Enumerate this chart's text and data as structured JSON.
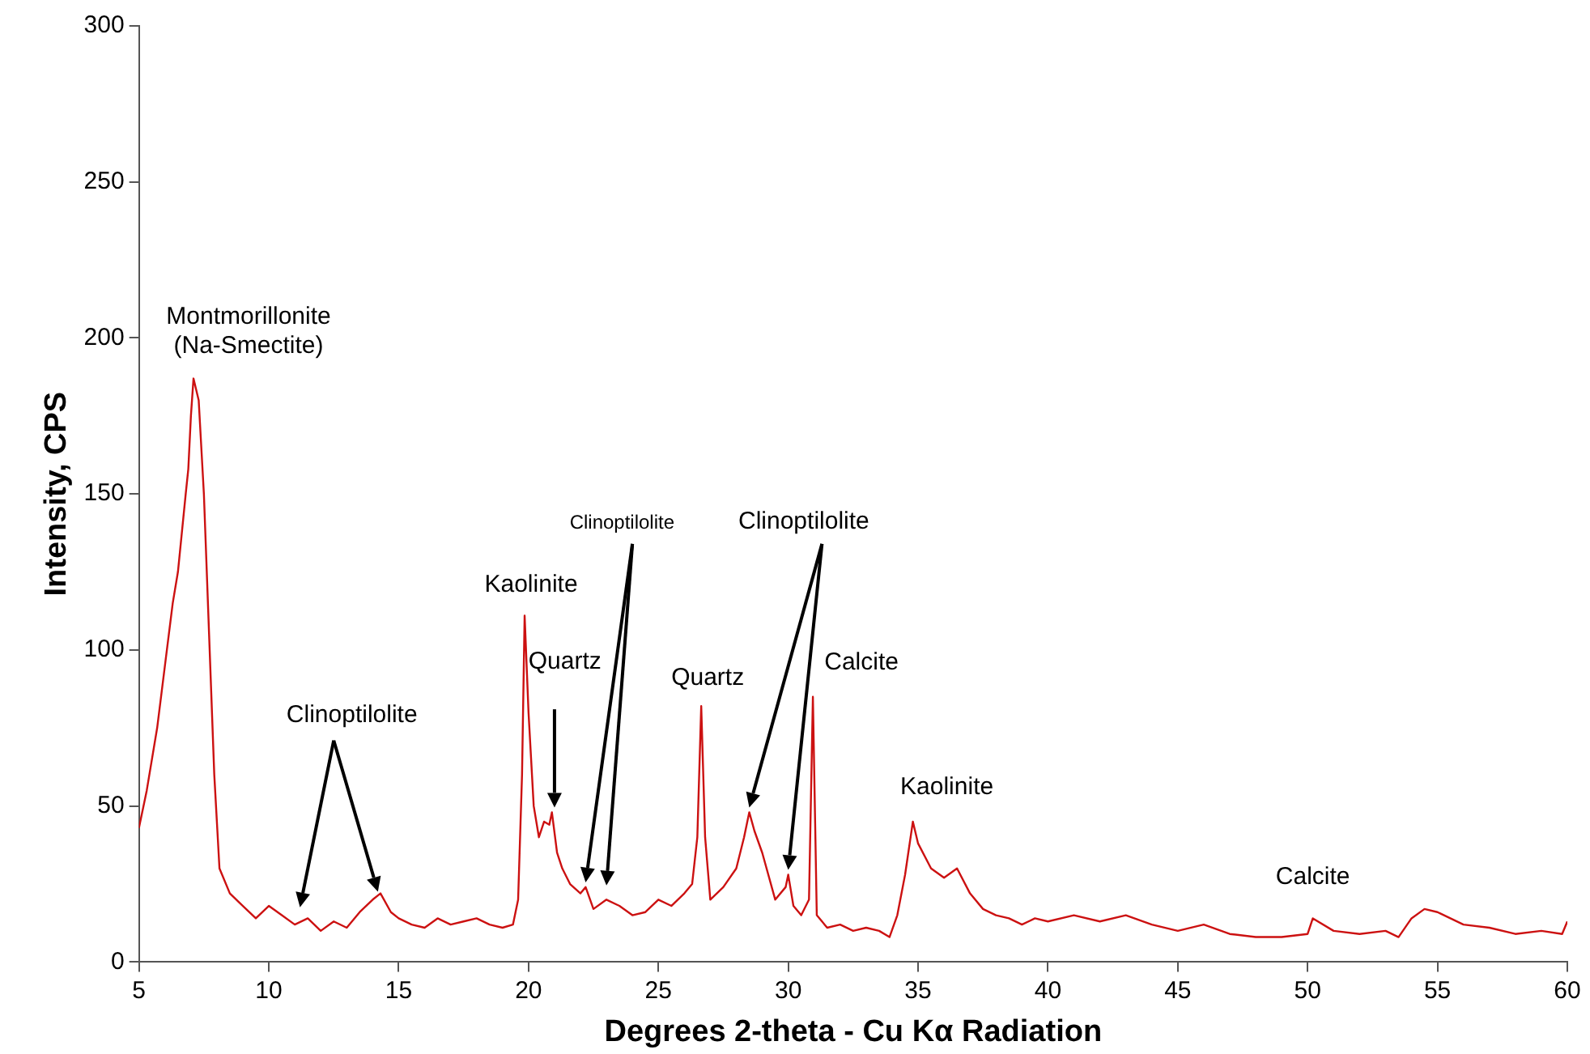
{
  "chart_data": {
    "type": "line",
    "xlabel": "Degrees 2-theta - Cu Kα Radiation",
    "ylabel": "Intensity, CPS",
    "x": [
      5,
      5.3,
      5.7,
      6,
      6.3,
      6.5,
      6.8,
      6.9,
      7,
      7.1,
      7.3,
      7.5,
      7.7,
      7.9,
      8.1,
      8.5,
      9,
      9.5,
      10,
      10.5,
      11,
      11.5,
      12,
      12.5,
      13,
      13.5,
      14,
      14.3,
      14.7,
      15,
      15.5,
      16,
      16.5,
      17,
      17.5,
      18,
      18.5,
      19,
      19.4,
      19.6,
      19.75,
      19.85,
      20,
      20.2,
      20.4,
      20.6,
      20.8,
      20.9,
      21.1,
      21.3,
      21.6,
      22,
      22.2,
      22.5,
      23,
      23.5,
      24,
      24.5,
      25,
      25.5,
      26,
      26.3,
      26.5,
      26.65,
      26.8,
      27,
      27.5,
      28,
      28.3,
      28.5,
      28.7,
      29,
      29.5,
      29.9,
      30,
      30.2,
      30.5,
      30.8,
      30.95,
      31.1,
      31.5,
      32,
      32.5,
      33,
      33.5,
      33.9,
      34.2,
      34.5,
      34.8,
      35,
      35.5,
      36,
      36.5,
      37,
      37.5,
      38,
      38.5,
      39,
      39.5,
      40,
      41,
      42,
      43,
      44,
      45,
      46,
      47,
      48,
      49,
      50,
      50.2,
      51,
      52,
      53,
      53.5,
      54,
      54.5,
      55,
      56,
      57,
      58,
      59,
      59.8,
      60
    ],
    "series": [
      {
        "color": "#cc1111",
        "values": [
          43,
          55,
          75,
          95,
          115,
          125,
          150,
          158,
          175,
          187,
          180,
          150,
          105,
          60,
          30,
          22,
          18,
          14,
          18,
          15,
          12,
          14,
          10,
          13,
          11,
          16,
          20,
          22,
          16,
          14,
          12,
          11,
          14,
          12,
          13,
          14,
          12,
          11,
          12,
          20,
          60,
          111,
          80,
          50,
          40,
          45,
          44,
          48,
          35,
          30,
          25,
          22,
          24,
          17,
          20,
          18,
          15,
          16,
          20,
          18,
          22,
          25,
          40,
          82,
          40,
          20,
          24,
          30,
          40,
          48,
          42,
          35,
          20,
          24,
          28,
          18,
          15,
          20,
          85,
          15,
          11,
          12,
          10,
          11,
          10,
          8,
          15,
          28,
          45,
          38,
          30,
          27,
          30,
          22,
          17,
          15,
          14,
          12,
          14,
          13,
          15,
          13,
          15,
          12,
          10,
          12,
          9,
          8,
          8,
          9,
          14,
          10,
          9,
          10,
          8,
          14,
          17,
          16,
          12,
          11,
          9,
          10,
          9,
          13
        ]
      }
    ],
    "xlim": [
      5,
      60
    ],
    "xticks": [
      5,
      10,
      15,
      20,
      25,
      30,
      35,
      40,
      45,
      50,
      55,
      60
    ],
    "ylim": [
      0,
      300
    ],
    "yticks": [
      0,
      50,
      100,
      150,
      200,
      250,
      300
    ],
    "grid": false,
    "legend": false,
    "marker": "none",
    "line_style": "solid",
    "annotations": [
      {
        "text": "Montmorillonite\n(Na-Smectite)",
        "x": 7.1,
        "y": 187
      },
      "Clinoptilolite",
      {
        "text": "Kaolinite",
        "x": 19.85,
        "y": 111
      },
      "Quartz",
      "Clinoptilolite",
      {
        "text": "Quartz",
        "x": 26.65,
        "y": 82
      },
      "Clinoptilolite",
      {
        "text": "Calcite",
        "x": 30.95,
        "y": 85
      },
      {
        "text": "Kaolinite",
        "x": 34.8,
        "y": 45
      },
      {
        "text": "Calcite",
        "x": 50.2,
        "y": 14
      }
    ]
  }
}
